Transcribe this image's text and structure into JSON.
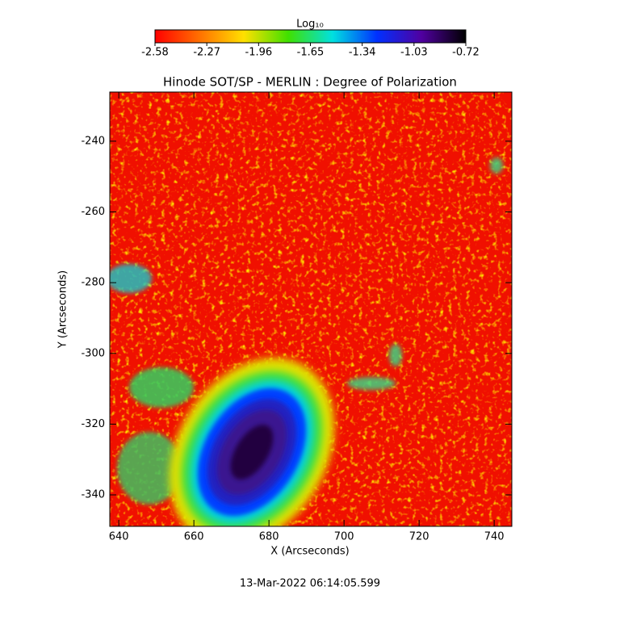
{
  "chart_data": {
    "type": "image",
    "title": "Hinode SOT/SP - MERLIN : Degree of Polarization",
    "x_label": "X (Arcseconds)",
    "y_label": "Y (Arcseconds)",
    "footer": "13-Mar-2022 06:14:05.599",
    "xlim": [
      637.6,
      744.7
    ],
    "ylim": [
      -348.9,
      -226.1
    ],
    "xticks": [
      640,
      660,
      680,
      700,
      720,
      740
    ],
    "yticks": [
      -240,
      -260,
      -280,
      -300,
      -320,
      -340
    ],
    "colorbar_label": "Log₁₀",
    "clim": [
      -2.58,
      -0.72
    ],
    "cticks": [
      -2.58,
      -2.27,
      -1.96,
      -1.65,
      -1.34,
      -1.03,
      -0.72
    ],
    "colormap": [
      "#ff0000",
      "#ff7000",
      "#ffe000",
      "#40e000",
      "#00e0e0",
      "#0030ff",
      "#5000a0",
      "#000000"
    ]
  }
}
